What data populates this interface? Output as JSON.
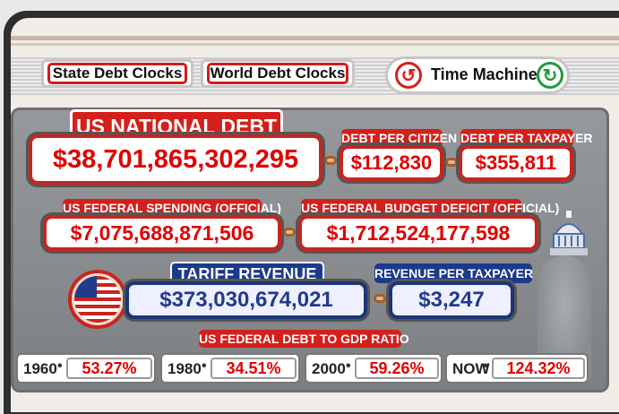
{
  "nav": {
    "state_debt_clocks": "State Debt Clocks",
    "world_debt_clocks": "World Debt Clocks",
    "time_machine": "Time Machine"
  },
  "national_debt": {
    "label": "US NATIONAL DEBT",
    "value": "$38,701,865,302,295"
  },
  "debt_per_citizen": {
    "label": "DEBT PER CITIZEN",
    "value": "$112,830"
  },
  "debt_per_taxpayer": {
    "label": "DEBT PER TAXPAYER",
    "value": "$355,811"
  },
  "federal_spending": {
    "label": "US FEDERAL SPENDING (OFFICIAL)",
    "value": "$7,075,688,871,506"
  },
  "budget_deficit": {
    "label": "US FEDERAL BUDGET DEFICIT (OFFICIAL)",
    "value": "$1,712,524,177,598"
  },
  "tariff_revenue": {
    "label": "TARIFF REVENUE",
    "value": "$373,030,674,021"
  },
  "revenue_per_taxpayer": {
    "label": "REVENUE PER TAXPAYER",
    "value": "$3,247"
  },
  "gdp_ratio": {
    "label": "US FEDERAL DEBT TO GDP RATIO",
    "items": [
      {
        "year": "1960",
        "value": "53.27%"
      },
      {
        "year": "1980",
        "value": "34.51%"
      },
      {
        "year": "2000",
        "value": "59.26%"
      },
      {
        "year": "NOW",
        "value": "124.32%"
      }
    ]
  },
  "icons": [
    "undo-icon",
    "redo-icon",
    "us-flag-icon",
    "capitol-icon"
  ],
  "colors": {
    "red": "#d51f1a",
    "blue": "#1b3a8c",
    "value_red": "#e00000"
  }
}
